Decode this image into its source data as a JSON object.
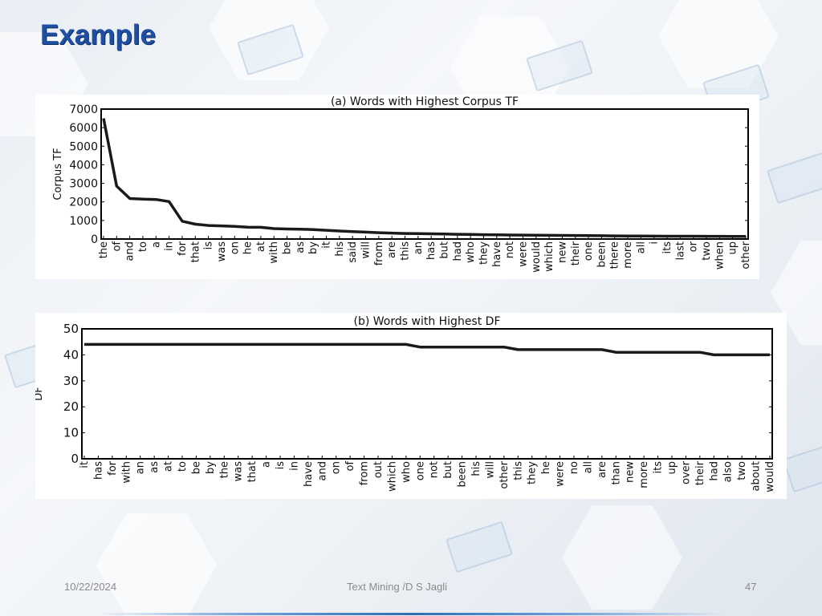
{
  "slide": {
    "title": "Example",
    "footer": {
      "date": "10/22/2024",
      "center": "Text Mining /D S Jagli",
      "page": "47"
    }
  },
  "chart_data": [
    {
      "type": "line",
      "title": "(a) Words with Highest Corpus TF",
      "xlabel": "",
      "ylabel": "Corpus TF",
      "ylim": [
        0,
        7000
      ],
      "yticks": [
        0,
        1000,
        2000,
        3000,
        4000,
        5000,
        6000,
        7000
      ],
      "grid": false,
      "categories": [
        "the",
        "of",
        "and",
        "to",
        "a",
        "in",
        "for",
        "that",
        "is",
        "was",
        "on",
        "he",
        "at",
        "with",
        "be",
        "as",
        "by",
        "it",
        "his",
        "said",
        "will",
        "from",
        "are",
        "this",
        "an",
        "has",
        "but",
        "had",
        "who",
        "they",
        "have",
        "not",
        "were",
        "would",
        "which",
        "new",
        "their",
        "one",
        "been",
        "there",
        "more",
        "all",
        "i",
        "its",
        "last",
        "or",
        "two",
        "when",
        "up",
        "other"
      ],
      "series": [
        {
          "values": [
            6500,
            2850,
            2180,
            2150,
            2130,
            2020,
            960,
            800,
            730,
            710,
            680,
            640,
            630,
            560,
            540,
            530,
            510,
            470,
            430,
            400,
            370,
            340,
            320,
            300,
            290,
            280,
            270,
            255,
            245,
            235,
            225,
            215,
            210,
            205,
            200,
            195,
            190,
            180,
            175,
            170,
            165,
            160,
            155,
            150,
            150,
            150,
            145,
            145,
            140,
            140
          ]
        }
      ]
    },
    {
      "type": "line",
      "title": "(b) Words with Highest DF",
      "xlabel": "",
      "ylabel": "DF",
      "ylim": [
        0,
        50
      ],
      "yticks": [
        0,
        10,
        20,
        30,
        40,
        50
      ],
      "grid": false,
      "categories": [
        "it",
        "has",
        "for",
        "with",
        "an",
        "as",
        "at",
        "to",
        "be",
        "by",
        "the",
        "was",
        "that",
        "a",
        "is",
        "in",
        "have",
        "and",
        "on",
        "of",
        "from",
        "out",
        "which",
        "who",
        "one",
        "not",
        "but",
        "been",
        "his",
        "will",
        "other",
        "this",
        "they",
        "he",
        "were",
        "no",
        "all",
        "are",
        "than",
        "new",
        "more",
        "its",
        "up",
        "over",
        "their",
        "had",
        "also",
        "two",
        "about",
        "would"
      ],
      "series": [
        {
          "values": [
            44,
            44,
            44,
            44,
            44,
            44,
            44,
            44,
            44,
            44,
            44,
            44,
            44,
            44,
            44,
            44,
            44,
            44,
            44,
            44,
            44,
            44,
            44,
            44,
            43,
            43,
            43,
            43,
            43,
            43,
            43,
            42,
            42,
            42,
            42,
            42,
            42,
            42,
            41,
            41,
            41,
            41,
            41,
            41,
            41,
            40,
            40,
            40,
            40,
            40
          ]
        }
      ]
    }
  ]
}
